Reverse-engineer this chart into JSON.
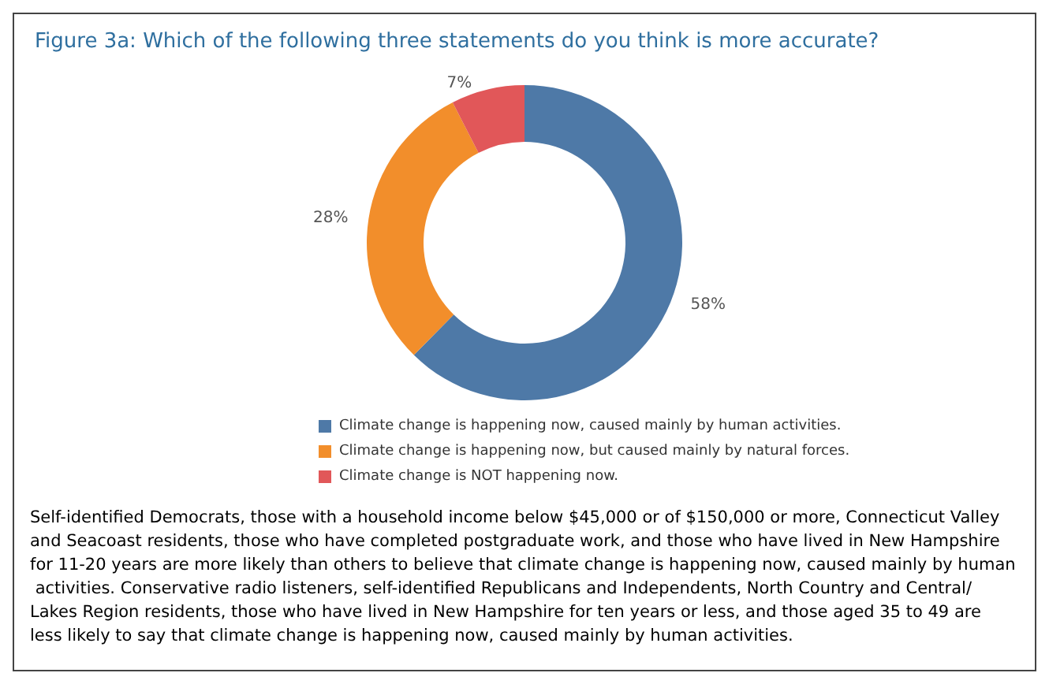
{
  "chart_data": {
    "type": "donut",
    "title": "Figure 3a: Which of the following three statements do you think is more accurate?",
    "categories": [
      "Climate change is happening now, caused mainly by human activities.",
      "Climate change is happening now, but caused mainly by natural forces.",
      "Climate change is NOT happening now."
    ],
    "values": [
      58,
      28,
      7
    ],
    "value_labels": [
      "58%",
      "28%",
      "7%"
    ],
    "colors": [
      "#4e79a7",
      "#f28e2b",
      "#e15759"
    ],
    "legend": "bottom",
    "annotations": [
      "Self-identified Democrats, those with a household income below $45,000 or of $150,000 or more, Connecticut Valley and Seacoast residents, those who have completed postgraduate work, and those who have lived in New Hampshire for 11-20 years are more likely than others to believe that climate change is happening now, caused mainly by human activities. Conservative radio listeners, self-identified Republicans and Independents, North Country and Central/Lakes Region residents, those who have lived in New Hampshire for ten years or less, and those aged 35 to 49 are less likely to say that climate change is happening now, caused mainly by human activities."
    ]
  }
}
